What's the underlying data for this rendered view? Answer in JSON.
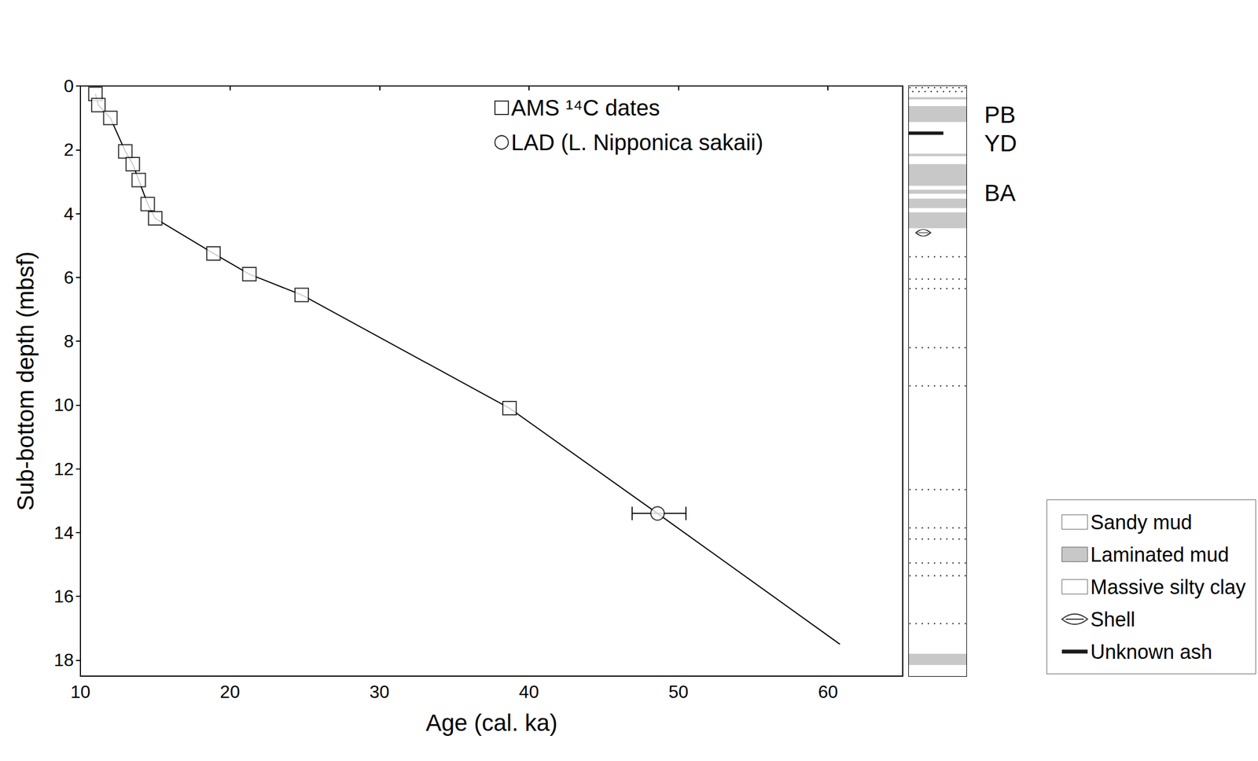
{
  "chart_data": {
    "type": "scatter",
    "x_label": "Age (cal. ka)",
    "y_label": "Sub-bottom depth (mbsf)",
    "xlim": [
      10,
      65
    ],
    "xticks": [
      10,
      20,
      30,
      40,
      50,
      60
    ],
    "ylim": [
      18.5,
      0
    ],
    "yticks": [
      0,
      2,
      4,
      6,
      8,
      10,
      12,
      14,
      16,
      18
    ],
    "grid": false,
    "legend": "top",
    "series": [
      {
        "type": "line",
        "color": "#000000",
        "line_style": "solid",
        "x": [
          11.0,
          11.2,
          12.0,
          13.0,
          13.5,
          13.9,
          14.5,
          15.0,
          18.9,
          21.3,
          24.8,
          38.7,
          48.6,
          60.8
        ],
        "values": [
          0.25,
          0.6,
          1.0,
          2.05,
          2.45,
          2.95,
          3.7,
          4.15,
          5.25,
          5.9,
          6.55,
          10.1,
          13.4,
          17.5
        ]
      },
      {
        "name": "AMS ¹⁴C dates",
        "type": "scatter",
        "marker": "square",
        "color": "#000000",
        "x": [
          11.0,
          11.2,
          12.0,
          13.0,
          13.5,
          13.9,
          14.5,
          15.0,
          18.9,
          21.3,
          24.8,
          38.7
        ],
        "values": [
          0.25,
          0.6,
          1.0,
          2.05,
          2.45,
          2.95,
          3.7,
          4.15,
          5.25,
          5.9,
          6.55,
          10.1
        ]
      },
      {
        "name": "LAD (L. Nipponica sakaii)",
        "type": "scatter",
        "marker": "circle",
        "color": "#000000",
        "x": [
          48.6
        ],
        "values": [
          13.4
        ],
        "x_error_low": [
          46.9
        ],
        "x_error_high": [
          50.5
        ]
      }
    ],
    "lithology": [
      {
        "name": "Sandy mud",
        "color": "#ffffff",
        "layers": [
          [
            0,
            0.3
          ],
          [
            5.3,
            5.42
          ],
          [
            6.0,
            6.12
          ],
          [
            6.3,
            6.42
          ],
          [
            8.15,
            8.27
          ],
          [
            9.35,
            9.47
          ],
          [
            12.6,
            12.72
          ],
          [
            13.8,
            13.92
          ],
          [
            14.15,
            14.27
          ],
          [
            14.9,
            15.02
          ],
          [
            15.3,
            15.42
          ],
          [
            16.8,
            16.92
          ]
        ]
      },
      {
        "name": "Laminated mud",
        "color": "#c8c8c8",
        "layers": [
          [
            0.35,
            0.42
          ],
          [
            0.63,
            1.13
          ],
          [
            2.12,
            2.2
          ],
          [
            2.45,
            3.13
          ],
          [
            3.25,
            3.38
          ],
          [
            3.53,
            3.83
          ],
          [
            3.96,
            4.46
          ],
          [
            17.8,
            18.15
          ]
        ]
      },
      {
        "name": "Massive silty clay",
        "color": "#ffffff"
      },
      {
        "name": "Shell",
        "color": "#000000",
        "depths": [
          4.6
        ]
      },
      {
        "name": "Unknown ash",
        "color": "#1a1a1a",
        "depths": [
          1.48
        ]
      }
    ],
    "annotations": [
      {
        "text": "PB",
        "y": 0.9
      },
      {
        "text": "YD",
        "y": 1.8
      },
      {
        "text": "BA",
        "y": 3.35
      }
    ]
  }
}
